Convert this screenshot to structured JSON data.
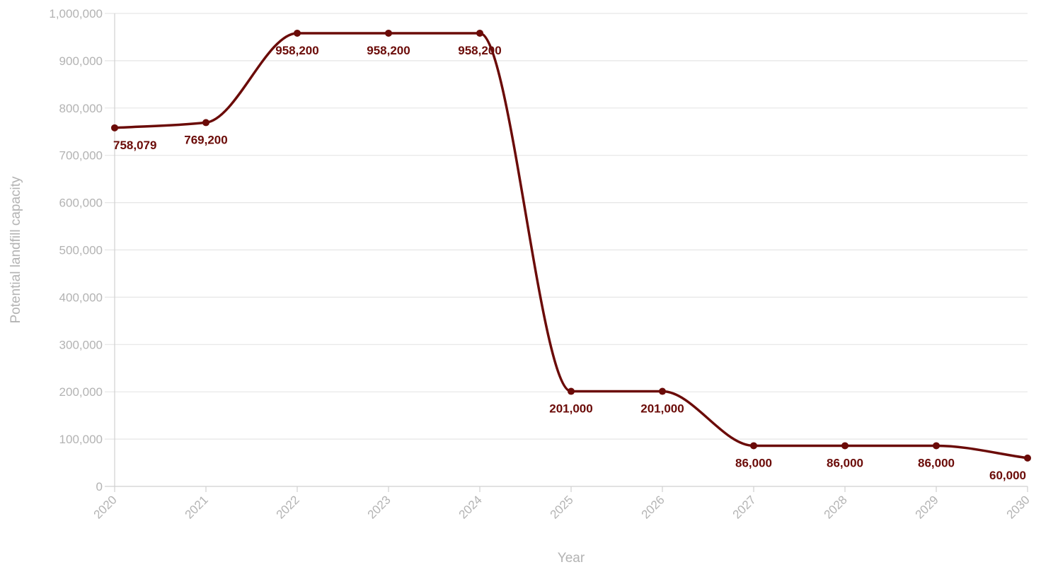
{
  "chart_data": {
    "type": "line",
    "x": [
      "2020",
      "2021",
      "2022",
      "2023",
      "2024",
      "2025",
      "2026",
      "2027",
      "2028",
      "2029",
      "2030"
    ],
    "series": [
      {
        "name": "",
        "values": [
          758079,
          769200,
          958200,
          958200,
          958200,
          201000,
          201000,
          86000,
          86000,
          86000,
          60000
        ],
        "labels": [
          "758,079",
          "769,200",
          "958,200",
          "958,200",
          "958,200",
          "201,000",
          "201,000",
          "86,000",
          "86,000",
          "86,000",
          "60,000"
        ]
      }
    ],
    "yticks": [
      0,
      100000,
      200000,
      300000,
      400000,
      500000,
      600000,
      700000,
      800000,
      900000,
      1000000
    ],
    "ytick_labels": [
      "0",
      "100,000",
      "200,000",
      "300,000",
      "400,000",
      "500,000",
      "600,000",
      "700,000",
      "800,000",
      "900,000",
      "1,000,000"
    ],
    "ylim": [
      0,
      1000000
    ],
    "xlabel": "Year",
    "ylabel": "Potential landfill capacity",
    "grid": true,
    "legend": "none",
    "curve": "smooth",
    "colors": {
      "series": "#6b0b08",
      "grid": "#e6e6e6",
      "axis_text": "#b3b3b3"
    }
  }
}
